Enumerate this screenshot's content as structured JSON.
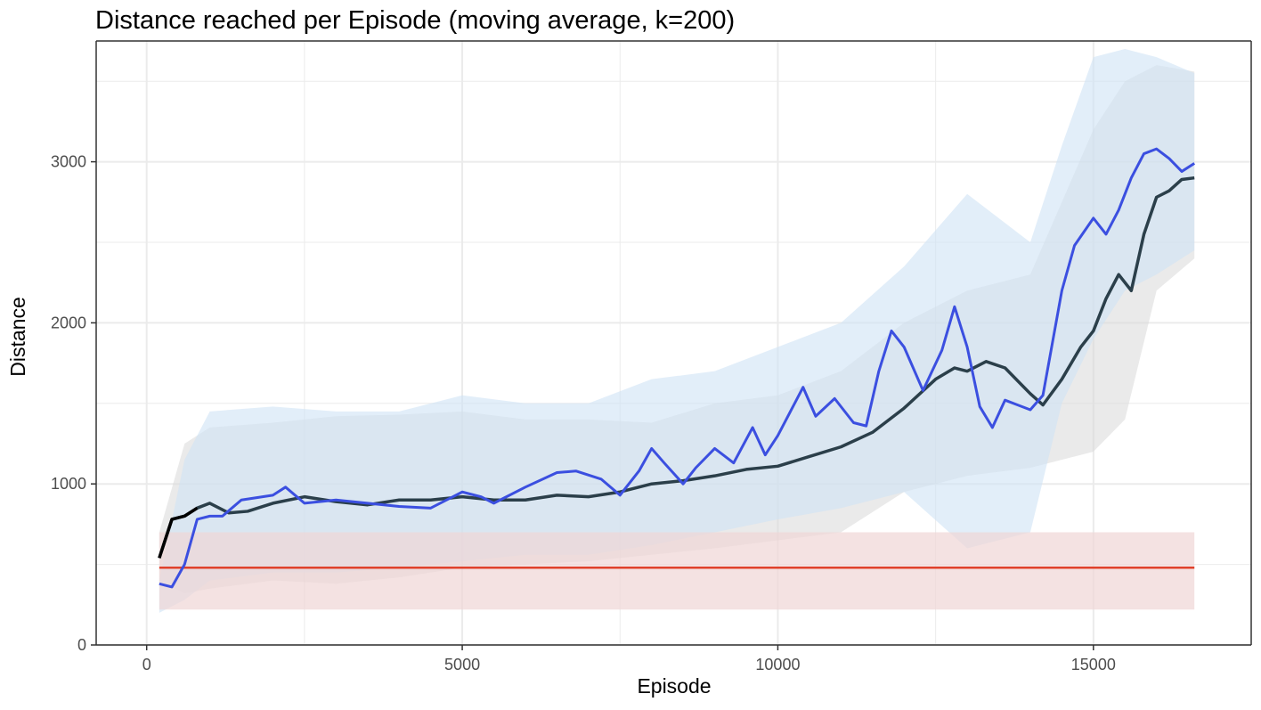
{
  "chart_data": {
    "type": "line",
    "title": "Distance reached per Episode (moving average, k=200)",
    "xlabel": "Episode",
    "ylabel": "Distance",
    "xlim": [
      -800,
      17500
    ],
    "ylim": [
      0,
      3750
    ],
    "x_ticks": [
      0,
      5000,
      10000,
      15000
    ],
    "x_tick_labels": [
      "0",
      "5000",
      "10000",
      "15000"
    ],
    "y_ticks": [
      0,
      1000,
      2000,
      3000
    ],
    "y_tick_labels": [
      "0",
      "1000",
      "2000",
      "3000"
    ],
    "grid": true,
    "legend": "none",
    "colors": {
      "blue_line": "#3b4fe0",
      "blue_band": "#cfe3f5",
      "dark_line": "#2b3f4a",
      "dark_start": "#000000",
      "grey_band": "#d9d9d9",
      "red_line": "#e0412b",
      "red_band": "#f0d6d6",
      "grid": "#ebebeb",
      "axis": "#333333"
    },
    "series": [
      {
        "points": [
          [
            200,
            380
          ],
          [
            400,
            360
          ],
          [
            600,
            500
          ],
          [
            800,
            780
          ],
          [
            1000,
            800
          ],
          [
            1200,
            800
          ],
          [
            1500,
            900
          ],
          [
            2000,
            930
          ],
          [
            2200,
            980
          ],
          [
            2500,
            880
          ],
          [
            3000,
            900
          ],
          [
            3500,
            880
          ],
          [
            4000,
            860
          ],
          [
            4500,
            850
          ],
          [
            5000,
            950
          ],
          [
            5300,
            920
          ],
          [
            5500,
            880
          ],
          [
            6000,
            980
          ],
          [
            6500,
            1070
          ],
          [
            6800,
            1080
          ],
          [
            7200,
            1030
          ],
          [
            7500,
            930
          ],
          [
            7800,
            1080
          ],
          [
            8000,
            1220
          ],
          [
            8200,
            1130
          ],
          [
            8500,
            1000
          ],
          [
            8700,
            1100
          ],
          [
            9000,
            1220
          ],
          [
            9300,
            1130
          ],
          [
            9600,
            1350
          ],
          [
            9800,
            1180
          ],
          [
            10000,
            1300
          ],
          [
            10200,
            1450
          ],
          [
            10400,
            1600
          ],
          [
            10600,
            1420
          ],
          [
            10900,
            1530
          ],
          [
            11200,
            1380
          ],
          [
            11400,
            1360
          ],
          [
            11600,
            1700
          ],
          [
            11800,
            1950
          ],
          [
            12000,
            1850
          ],
          [
            12300,
            1580
          ],
          [
            12600,
            1830
          ],
          [
            12800,
            2100
          ],
          [
            13000,
            1850
          ],
          [
            13200,
            1480
          ],
          [
            13400,
            1350
          ],
          [
            13600,
            1520
          ],
          [
            14000,
            1460
          ],
          [
            14200,
            1550
          ],
          [
            14500,
            2200
          ],
          [
            14700,
            2480
          ],
          [
            15000,
            2650
          ],
          [
            15200,
            2550
          ],
          [
            15400,
            2700
          ],
          [
            15600,
            2900
          ],
          [
            15800,
            3050
          ],
          [
            16000,
            3080
          ],
          [
            16200,
            3020
          ],
          [
            16400,
            2940
          ],
          [
            16600,
            2990
          ]
        ]
      },
      {
        "points": [
          [
            200,
            540
          ],
          [
            400,
            780
          ],
          [
            600,
            800
          ],
          [
            800,
            850
          ],
          [
            1000,
            880
          ],
          [
            1300,
            820
          ],
          [
            1600,
            830
          ],
          [
            2000,
            880
          ],
          [
            2500,
            920
          ],
          [
            3000,
            890
          ],
          [
            3500,
            870
          ],
          [
            4000,
            900
          ],
          [
            4500,
            900
          ],
          [
            5000,
            920
          ],
          [
            5500,
            900
          ],
          [
            6000,
            900
          ],
          [
            6500,
            930
          ],
          [
            7000,
            920
          ],
          [
            7500,
            950
          ],
          [
            8000,
            1000
          ],
          [
            8500,
            1020
          ],
          [
            9000,
            1050
          ],
          [
            9500,
            1090
          ],
          [
            10000,
            1110
          ],
          [
            10500,
            1170
          ],
          [
            11000,
            1230
          ],
          [
            11500,
            1320
          ],
          [
            12000,
            1470
          ],
          [
            12500,
            1650
          ],
          [
            12800,
            1720
          ],
          [
            13000,
            1700
          ],
          [
            13300,
            1760
          ],
          [
            13600,
            1720
          ],
          [
            14000,
            1560
          ],
          [
            14200,
            1490
          ],
          [
            14500,
            1650
          ],
          [
            14800,
            1850
          ],
          [
            15000,
            1950
          ],
          [
            15200,
            2150
          ],
          [
            15400,
            2300
          ],
          [
            15600,
            2200
          ],
          [
            15800,
            2550
          ],
          [
            16000,
            2780
          ],
          [
            16200,
            2820
          ],
          [
            16400,
            2890
          ],
          [
            16600,
            2900
          ]
        ]
      }
    ],
    "bands": [
      {
        "upper": [
          [
            200,
            700
          ],
          [
            600,
            1250
          ],
          [
            1000,
            1350
          ],
          [
            2000,
            1380
          ],
          [
            3000,
            1420
          ],
          [
            4000,
            1430
          ],
          [
            5000,
            1450
          ],
          [
            6000,
            1400
          ],
          [
            7000,
            1400
          ],
          [
            8000,
            1380
          ],
          [
            9000,
            1500
          ],
          [
            10000,
            1550
          ],
          [
            11000,
            1700
          ],
          [
            12000,
            2000
          ],
          [
            13000,
            2200
          ],
          [
            14000,
            2300
          ],
          [
            15000,
            3200
          ],
          [
            15500,
            3500
          ],
          [
            16000,
            3600
          ],
          [
            16600,
            3560
          ]
        ],
        "lower": [
          [
            200,
            400
          ],
          [
            600,
            320
          ],
          [
            1000,
            350
          ],
          [
            2000,
            400
          ],
          [
            3000,
            380
          ],
          [
            4000,
            420
          ],
          [
            5000,
            480
          ],
          [
            6000,
            500
          ],
          [
            7000,
            520
          ],
          [
            8000,
            560
          ],
          [
            9000,
            600
          ],
          [
            10000,
            650
          ],
          [
            11000,
            700
          ],
          [
            12000,
            950
          ],
          [
            13000,
            1050
          ],
          [
            14000,
            1100
          ],
          [
            15000,
            1200
          ],
          [
            15500,
            1400
          ],
          [
            16000,
            2200
          ],
          [
            16600,
            2400
          ]
        ]
      },
      {
        "upper": [
          [
            200,
            400
          ],
          [
            600,
            1150
          ],
          [
            1000,
            1450
          ],
          [
            2000,
            1480
          ],
          [
            3000,
            1450
          ],
          [
            4000,
            1450
          ],
          [
            5000,
            1550
          ],
          [
            6000,
            1500
          ],
          [
            7000,
            1500
          ],
          [
            8000,
            1650
          ],
          [
            9000,
            1700
          ],
          [
            10000,
            1850
          ],
          [
            11000,
            2000
          ],
          [
            12000,
            2350
          ],
          [
            13000,
            2800
          ],
          [
            14000,
            2500
          ],
          [
            14500,
            3100
          ],
          [
            15000,
            3650
          ],
          [
            15500,
            3700
          ],
          [
            16000,
            3650
          ],
          [
            16600,
            3550
          ]
        ],
        "lower": [
          [
            200,
            200
          ],
          [
            600,
            280
          ],
          [
            1000,
            400
          ],
          [
            2000,
            450
          ],
          [
            3000,
            450
          ],
          [
            4000,
            480
          ],
          [
            5000,
            520
          ],
          [
            6000,
            560
          ],
          [
            7000,
            560
          ],
          [
            8000,
            620
          ],
          [
            9000,
            700
          ],
          [
            10000,
            780
          ],
          [
            11000,
            850
          ],
          [
            12000,
            950
          ],
          [
            13000,
            600
          ],
          [
            14000,
            700
          ],
          [
            14500,
            1500
          ],
          [
            15000,
            1900
          ],
          [
            15500,
            2200
          ],
          [
            16000,
            2300
          ],
          [
            16600,
            2450
          ]
        ]
      },
      {
        "upper": [
          [
            200,
            700
          ],
          [
            16600,
            700
          ]
        ],
        "lower": [
          [
            200,
            220
          ],
          [
            16600,
            220
          ]
        ]
      }
    ],
    "hline": {
      "y": 480,
      "x_range": [
        200,
        16600
      ]
    }
  }
}
